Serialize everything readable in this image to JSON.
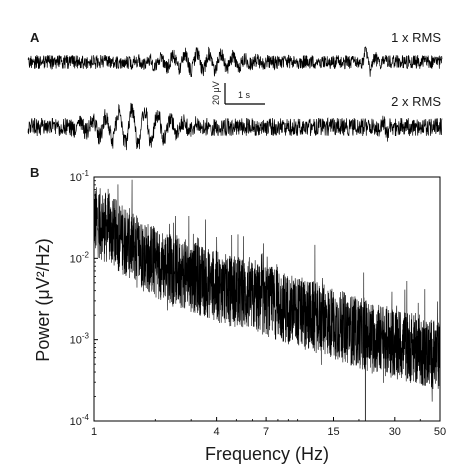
{
  "panel_a": {
    "letter": "A",
    "trace_1_label": "1 x RMS",
    "trace_2_label": "2 x RMS",
    "scale_bar": {
      "amplitude_label": "20 μV",
      "time_label": "1 s"
    }
  },
  "panel_b": {
    "letter": "B"
  },
  "chart_data": {
    "type": "line",
    "title": "",
    "xlabel": "Frequency (Hz)",
    "ylabel": "Power (μV²/Hz)",
    "xscale": "log",
    "yscale": "log",
    "xlim": [
      1,
      50
    ],
    "ylim": [
      0.0001,
      0.1
    ],
    "x_ticks": [
      1,
      4,
      7,
      15,
      30,
      50
    ],
    "y_ticks": [
      {
        "value": 0.1,
        "base": "10",
        "exp": "-1"
      },
      {
        "value": 0.01,
        "base": "10",
        "exp": "-2"
      },
      {
        "value": 0.001,
        "base": "10",
        "exp": "-3"
      },
      {
        "value": 0.0001,
        "base": "10",
        "exp": "-4"
      }
    ],
    "grid": false,
    "series": [
      {
        "x": [
          1,
          1.5,
          2,
          3,
          4,
          5,
          7,
          10,
          15,
          20,
          30,
          40,
          50
        ],
        "values": [
          0.03,
          0.015,
          0.009,
          0.006,
          0.0045,
          0.0038,
          0.003,
          0.0022,
          0.0016,
          0.0012,
          0.0009,
          0.00075,
          0.0006
        ],
        "color": "#000000"
      }
    ]
  }
}
